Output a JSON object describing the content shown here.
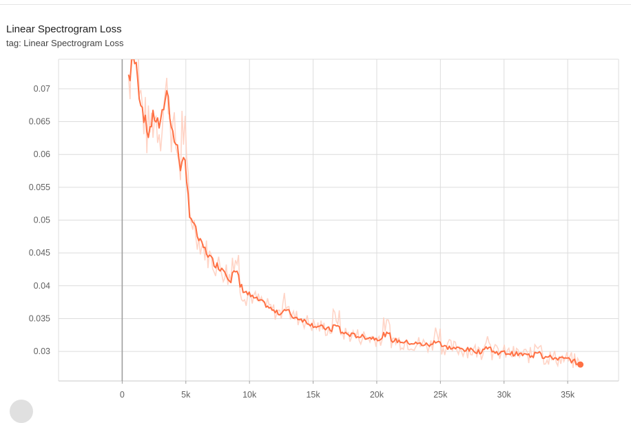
{
  "header": {
    "title": "Linear Spectrogram Loss",
    "tag": "tag: Linear Spectrogram Loss"
  },
  "chart_data": {
    "type": "line",
    "title": "Linear Spectrogram Loss",
    "subtitle": "tag: Linear Spectrogram Loss",
    "xlabel": "",
    "ylabel": "",
    "xlim": [
      -5000,
      39000
    ],
    "ylim": [
      0.0255,
      0.0745
    ],
    "x_ticks": [
      0,
      5000,
      10000,
      15000,
      20000,
      25000,
      30000,
      35000
    ],
    "x_tick_labels": [
      "0",
      "5k",
      "10k",
      "15k",
      "20k",
      "25k",
      "30k",
      "35k"
    ],
    "y_ticks": [
      0.03,
      0.035,
      0.04,
      0.045,
      0.05,
      0.055,
      0.06,
      0.065,
      0.07
    ],
    "y_tick_labels": [
      "0.03",
      "0.035",
      "0.04",
      "0.045",
      "0.05",
      "0.055",
      "0.06",
      "0.065",
      "0.07"
    ],
    "grid": true,
    "colors": {
      "smoothed": "#ff7043",
      "raw": "#ffccbc",
      "grid": "#dcdcdc",
      "zero_axis": "#9e9e9e"
    },
    "series": [
      {
        "style": "smoothed",
        "x": [
          500,
          1000,
          1500,
          2000,
          2500,
          3000,
          3300,
          3600,
          3800,
          4000,
          4300,
          4600,
          5000,
          5300,
          5700,
          6000,
          6500,
          7000,
          7500,
          8000,
          8500,
          9000,
          9500,
          10000,
          10500,
          11000,
          12000,
          13000,
          14000,
          15000,
          16000,
          17000,
          18000,
          19000,
          20000,
          21000,
          22000,
          23000,
          24000,
          25000,
          26000,
          27000,
          28000,
          29000,
          30000,
          31000,
          32000,
          33000,
          34000,
          35000,
          35500,
          36000
        ],
        "y": [
          0.072,
          0.0715,
          0.068,
          0.063,
          0.066,
          0.064,
          0.068,
          0.07,
          0.065,
          0.063,
          0.061,
          0.058,
          0.055,
          0.051,
          0.049,
          0.047,
          0.0455,
          0.044,
          0.043,
          0.0425,
          0.041,
          0.0405,
          0.0395,
          0.0385,
          0.038,
          0.0375,
          0.036,
          0.0355,
          0.035,
          0.034,
          0.0335,
          0.033,
          0.0325,
          0.0322,
          0.032,
          0.0318,
          0.0315,
          0.0312,
          0.031,
          0.0308,
          0.0305,
          0.0303,
          0.03,
          0.0299,
          0.0298,
          0.0296,
          0.0294,
          0.0292,
          0.029,
          0.0288,
          0.0285,
          0.028
        ]
      }
    ],
    "last_point": {
      "x": 36000,
      "y": 0.028
    }
  }
}
